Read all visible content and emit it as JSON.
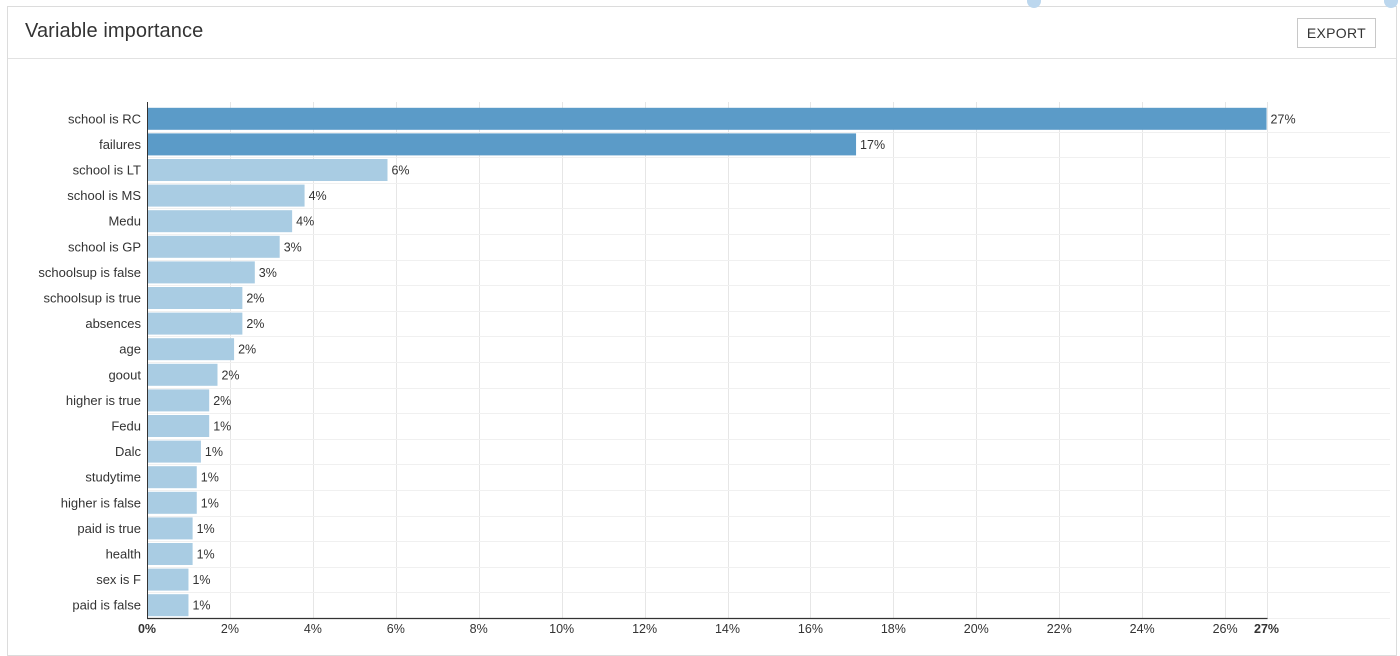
{
  "panel": {
    "title": "Variable importance",
    "export_label": "EXPORT"
  },
  "chart_data": {
    "type": "bar",
    "orientation": "horizontal",
    "categories": [
      "school is RC",
      "failures",
      "school is LT",
      "school is MS",
      "Medu",
      "school is GP",
      "schoolsup is false",
      "schoolsup is true",
      "absences",
      "age",
      "goout",
      "higher is true",
      "Fedu",
      "Dalc",
      "studytime",
      "higher is false",
      "paid is true",
      "health",
      "sex is F",
      "paid is false"
    ],
    "values": [
      27.0,
      17.1,
      5.8,
      3.8,
      3.5,
      3.2,
      2.6,
      2.3,
      2.3,
      2.1,
      1.7,
      1.5,
      1.5,
      1.3,
      1.2,
      1.2,
      1.1,
      1.1,
      1.0,
      1.0
    ],
    "value_labels": [
      "27%",
      "17%",
      "6%",
      "4%",
      "4%",
      "3%",
      "3%",
      "2%",
      "2%",
      "2%",
      "2%",
      "2%",
      "1%",
      "1%",
      "1%",
      "1%",
      "1%",
      "1%",
      "1%",
      "1%"
    ],
    "highlight": [
      true,
      true,
      false,
      false,
      false,
      false,
      false,
      false,
      false,
      false,
      false,
      false,
      false,
      false,
      false,
      false,
      false,
      false,
      false,
      false
    ],
    "xticks": [
      "0%",
      "2%",
      "4%",
      "6%",
      "8%",
      "10%",
      "12%",
      "14%",
      "16%",
      "18%",
      "20%",
      "22%",
      "24%",
      "26%",
      "27%"
    ],
    "xtick_values": [
      0,
      2,
      4,
      6,
      8,
      10,
      12,
      14,
      16,
      18,
      20,
      22,
      24,
      26,
      27
    ],
    "xlim": [
      0,
      27.3
    ],
    "title": "",
    "xlabel": "",
    "ylabel": "",
    "grid": true,
    "colors": {
      "highlight": "#5b9bc8",
      "normal": "#a9cce3",
      "grid": "#e6e6e6",
      "axis": "#333333"
    }
  }
}
